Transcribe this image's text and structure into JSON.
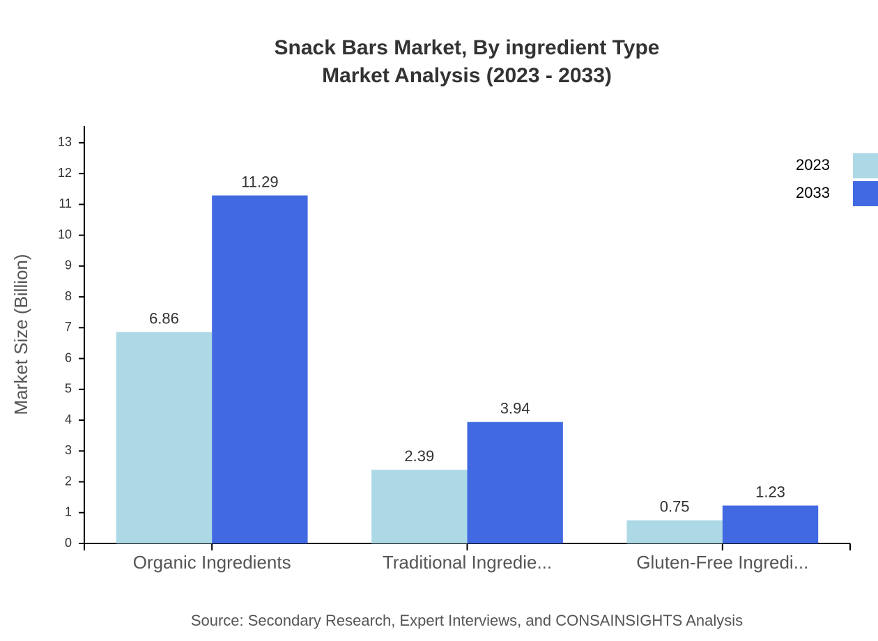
{
  "chart_data": {
    "type": "bar",
    "title": [
      "Snack Bars Market, By ingredient Type",
      "Market Analysis (2023 - 2033)"
    ],
    "y_label": "Market Size (Billion)",
    "source": "Source: Secondary Research, Expert Interviews, and CONSAINSIGHTS Analysis",
    "categories": [
      "Organic Ingredients",
      "Traditional Ingredie...",
      "Gluten-Free Ingredi..."
    ],
    "series": [
      {
        "name": "2023",
        "color": "#add8e6",
        "values": [
          6.86,
          2.39,
          0.75
        ]
      },
      {
        "name": "2033",
        "color": "#4169e1",
        "values": [
          11.29,
          3.94,
          1.23
        ]
      }
    ],
    "ylim": [
      0,
      13.54
    ],
    "yticks": [
      0,
      1,
      2,
      3,
      4,
      5,
      6,
      7,
      8,
      9,
      10,
      11,
      12,
      13
    ],
    "grid": false,
    "legend": "top-right"
  }
}
